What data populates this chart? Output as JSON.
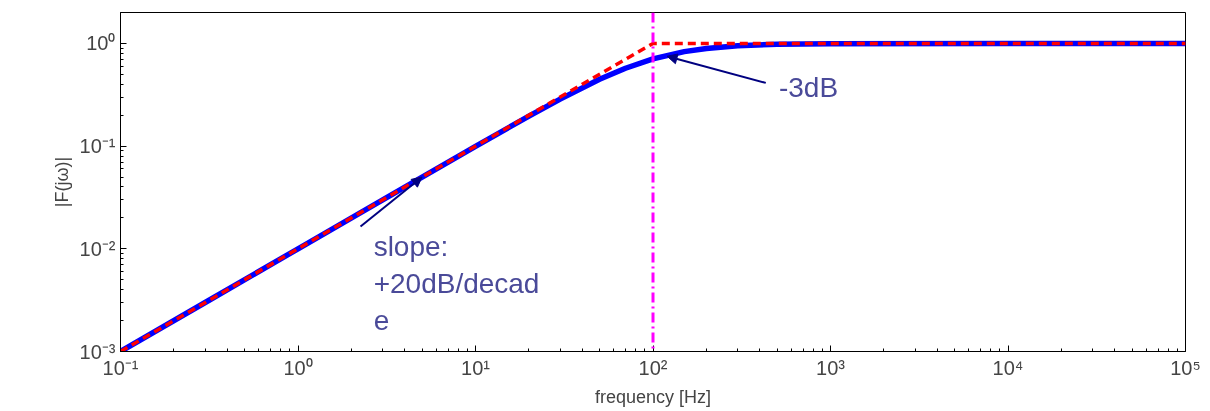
{
  "chart_data": {
    "type": "line",
    "xlabel": "frequency [Hz]",
    "ylabel": "|F(jω)|",
    "log": "xy",
    "grid": false,
    "xlim": [
      0.1,
      100000
    ],
    "ylim": [
      0.001,
      2
    ],
    "xticks": [
      {
        "value": 0.1,
        "label": "10⁻¹"
      },
      {
        "value": 1,
        "label": "10⁰"
      },
      {
        "value": 10,
        "label": "10¹"
      },
      {
        "value": 100,
        "label": "10²"
      },
      {
        "value": 1000,
        "label": "10³"
      },
      {
        "value": 10000,
        "label": "10⁴"
      },
      {
        "value": 100000,
        "label": "10⁵"
      }
    ],
    "yticks": [
      {
        "value": 0.001,
        "label": "10⁻³"
      },
      {
        "value": 0.01,
        "label": "10⁻²"
      },
      {
        "value": 0.1,
        "label": "10⁻¹"
      },
      {
        "value": 1,
        "label": "10⁰"
      }
    ],
    "series": [
      {
        "color": "#0000ff",
        "line_style": "solid",
        "x": [
          0.1,
          0.3,
          1,
          3,
          10,
          20,
          30,
          50,
          70,
          100,
          150,
          200,
          300,
          500,
          1000,
          10000,
          100000
        ],
        "values": [
          0.001,
          0.003,
          0.01,
          0.03,
          0.0995,
          0.196,
          0.287,
          0.447,
          0.573,
          0.707,
          0.832,
          0.894,
          0.949,
          0.981,
          0.995,
          1,
          1
        ]
      },
      {
        "color": "#ff0000",
        "line_style": "dashed",
        "x": [
          0.1,
          100,
          100000
        ],
        "values": [
          0.001,
          1,
          1
        ]
      }
    ],
    "ref_lines": [
      {
        "axis": "x",
        "value": 100,
        "color": "#ff00ff",
        "line_style": "dashdot"
      }
    ],
    "annotations": [
      {
        "text": "-3dB",
        "x": 120,
        "y": 0.75
      },
      {
        "text": "slope:\n+20dB/decad\ne",
        "x": 5,
        "y": 0.05
      }
    ]
  }
}
